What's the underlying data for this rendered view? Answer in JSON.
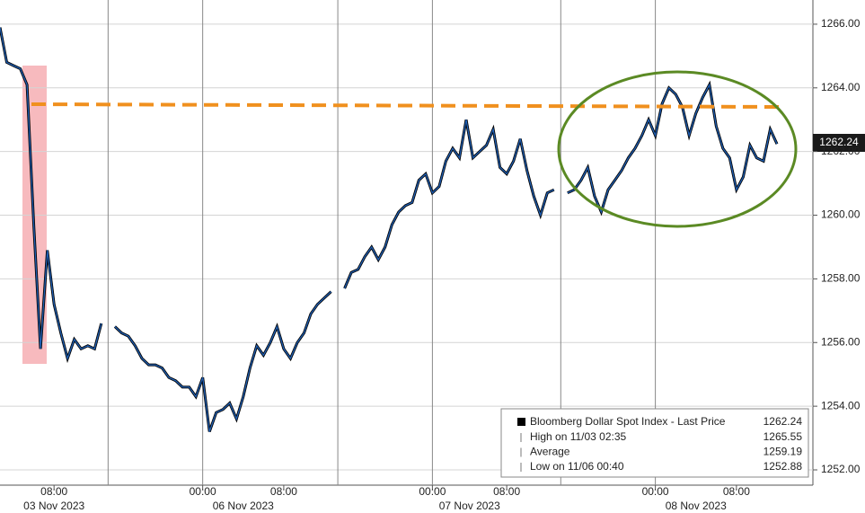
{
  "chart_data": {
    "type": "line",
    "series": [
      {
        "name": "Bloomberg Dollar Spot Index - Last Price",
        "color": "#1f5fb4",
        "values": [
          1265.9,
          1264.8,
          1264.7,
          1264.6,
          1264.1,
          1259.7,
          1255.8,
          1258.9,
          1257.2,
          1256.3,
          1255.5,
          1256.1,
          1255.8,
          1255.9,
          1255.8,
          1256.6,
          null,
          1256.5,
          1256.3,
          1256.2,
          1255.9,
          1255.5,
          1255.3,
          1255.3,
          1255.2,
          1254.9,
          1254.8,
          1254.6,
          1254.6,
          1254.3,
          1254.9,
          1253.2,
          1253.8,
          1253.9,
          1254.1,
          1253.6,
          1254.3,
          1255.2,
          1255.9,
          1255.6,
          1256.0,
          1256.5,
          1255.8,
          1255.5,
          1256.0,
          1256.3,
          1256.9,
          1257.2,
          1257.4,
          1257.6,
          null,
          1257.7,
          1258.2,
          1258.3,
          1258.7,
          1259.0,
          1258.6,
          1259.0,
          1259.7,
          1260.1,
          1260.3,
          1260.4,
          1261.1,
          1261.3,
          1260.7,
          1260.9,
          1261.7,
          1262.1,
          1261.8,
          1263.0,
          1261.8,
          1262.0,
          1262.2,
          1262.7,
          1261.5,
          1261.3,
          1261.7,
          1262.4,
          1261.4,
          1260.6,
          1260.0,
          1260.7,
          1260.8,
          null,
          1260.7,
          1260.8,
          1261.1,
          1261.5,
          1260.6,
          1260.1,
          1260.8,
          1261.1,
          1261.4,
          1261.8,
          1262.1,
          1262.5,
          1263.0,
          1262.5,
          1263.5,
          1264.0,
          1263.8,
          1263.4,
          1262.5,
          1263.2,
          1263.7,
          1264.1,
          1262.8,
          1262.1,
          1261.8,
          1260.8,
          1261.2,
          1262.2,
          1261.8,
          1261.7,
          1262.7,
          1262.24
        ]
      }
    ],
    "categories": [
      null,
      null,
      null,
      null,
      null,
      null,
      null,
      null,
      "08:00",
      null,
      null,
      null,
      null,
      null,
      null,
      null,
      null,
      null,
      null,
      null,
      null,
      null,
      null,
      null,
      null,
      null,
      null,
      null,
      null,
      null,
      "00:00",
      null,
      null,
      null,
      null,
      null,
      null,
      null,
      null,
      null,
      null,
      null,
      "08:00",
      null,
      null,
      null,
      null,
      null,
      null,
      null,
      null,
      null,
      null,
      null,
      null,
      null,
      null,
      null,
      null,
      null,
      null,
      null,
      null,
      null,
      "00:00",
      null,
      null,
      null,
      null,
      null,
      null,
      null,
      null,
      null,
      null,
      "08:00",
      null,
      null,
      null,
      null,
      null,
      null,
      null,
      null,
      null,
      null,
      null,
      null,
      null,
      null,
      null,
      null,
      null,
      null,
      null,
      null,
      null,
      "00:00",
      null,
      null,
      null,
      null,
      null,
      null,
      null,
      null,
      null,
      null,
      null,
      "08:00",
      null,
      null,
      null,
      null,
      null,
      null
    ],
    "day_labels": [
      "03 Nov 2023",
      "06 Nov 2023",
      "07 Nov 2023",
      "08 Nov 2023"
    ],
    "ylim": [
      1251.52,
      1266.76
    ],
    "yticks": [
      {
        "value": 1252,
        "label": "1252.00"
      },
      {
        "value": 1254,
        "label": "1254.00"
      },
      {
        "value": 1256,
        "label": "1256.00"
      },
      {
        "value": 1258,
        "label": "1258.00"
      },
      {
        "value": 1260,
        "label": "1260.00"
      },
      {
        "value": 1262,
        "label": "1262.00"
      },
      {
        "value": 1264,
        "label": "1264.00"
      },
      {
        "value": 1266,
        "label": "1266.00"
      }
    ],
    "grid": true,
    "stats": [
      {
        "label": "High on 11/03 02:35",
        "value": 1265.55
      },
      {
        "label": "Average",
        "value": 1259.19
      },
      {
        "label": "Low on 11/06 00:40",
        "value": 1252.88
      }
    ]
  }
}
